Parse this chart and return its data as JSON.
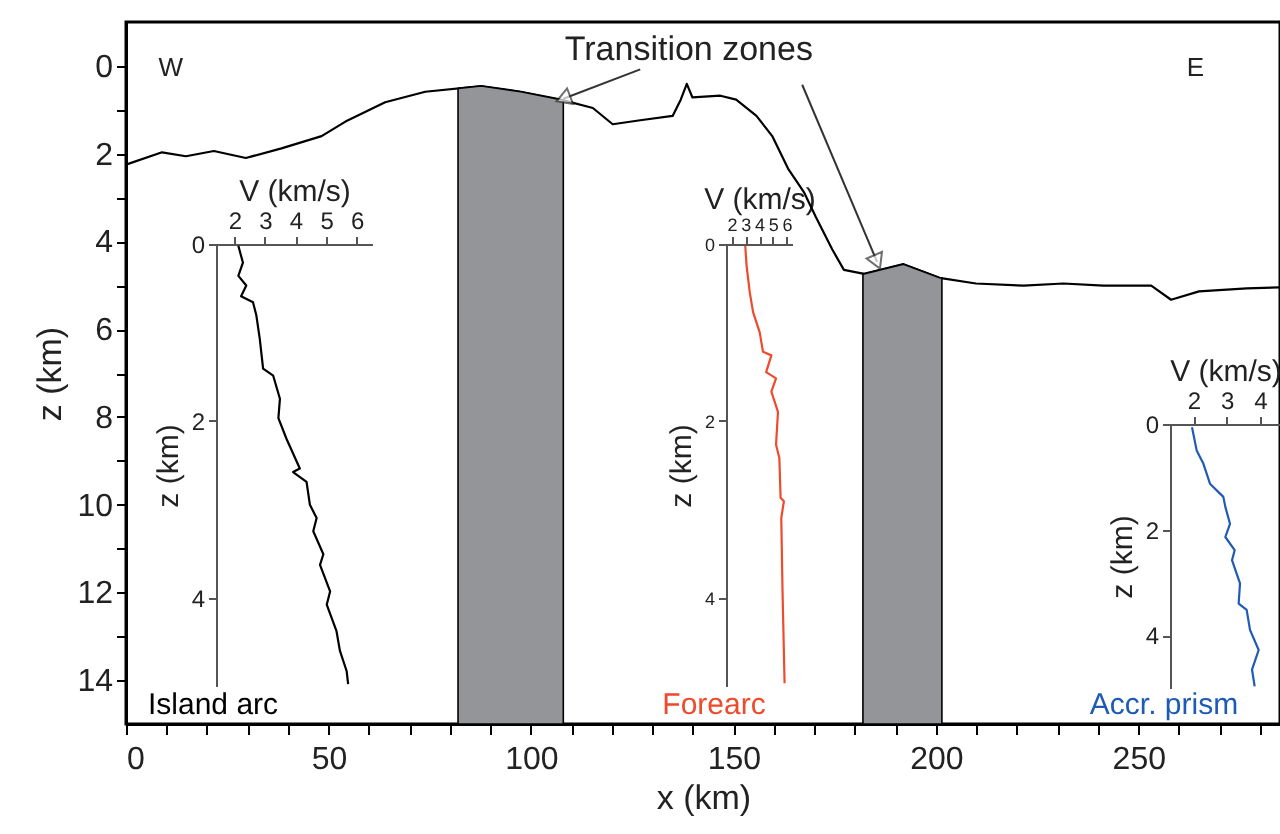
{
  "chart_data": [
    {
      "type": "line",
      "xlabel": "x (km)",
      "ylabel": "z (km)",
      "xlim": [
        0,
        285
      ],
      "ylim": [
        15,
        -1
      ],
      "xticks": [
        0,
        {
          "value": 10,
          "label": null
        },
        {
          "value": 20,
          "label": null
        },
        {
          "value": 30,
          "label": null
        },
        {
          "value": 40,
          "label": null
        },
        50,
        {
          "value": 60,
          "label": null
        },
        {
          "value": 70,
          "label": null
        },
        {
          "value": 80,
          "label": null
        },
        {
          "value": 90,
          "label": null
        },
        100,
        {
          "value": 110,
          "label": null
        },
        {
          "value": 120,
          "label": null
        },
        {
          "value": 130,
          "label": null
        },
        {
          "value": 140,
          "label": null
        },
        150,
        {
          "value": 160,
          "label": null
        },
        {
          "value": 170,
          "label": null
        },
        {
          "value": 180,
          "label": null
        },
        {
          "value": 190,
          "label": null
        },
        200,
        {
          "value": 210,
          "label": null
        },
        {
          "value": 220,
          "label": null
        },
        {
          "value": 230,
          "label": null
        },
        {
          "value": 240,
          "label": null
        },
        250,
        {
          "value": 260,
          "label": null
        },
        {
          "value": 270,
          "label": null
        },
        {
          "value": 280,
          "label": null
        }
      ],
      "yticks": [
        0,
        {
          "value": 1,
          "label": null
        },
        2,
        {
          "value": 3,
          "label": null
        },
        4,
        {
          "value": 5,
          "label": null
        },
        6,
        {
          "value": 7,
          "label": null
        },
        8,
        {
          "value": 9,
          "label": null
        },
        10,
        {
          "value": 11,
          "label": null
        },
        12,
        {
          "value": 13,
          "label": null
        },
        14
      ],
      "grid": false,
      "legend": false,
      "annotations": [
        "W",
        "E",
        {
          "text": "Transition zones",
          "x": 108,
          "y": 0.75
        }
      ],
      "bands": [
        {
          "axis": "x",
          "from": 82,
          "to": 108,
          "color": "#939598"
        },
        {
          "axis": "x",
          "from": 182,
          "to": 201.5,
          "color": "#939598"
        }
      ],
      "series": [
        {
          "color": "#000000",
          "x": [
            0,
            8.9,
            14.8,
            21.7,
            29.6,
            38.4,
            48.3,
            54.2,
            64,
            73.9,
            87.7,
            97.5,
            107.4,
            115.3,
            120.2,
            127,
            135,
            137,
            138.5,
            139.9,
            146.8,
            150.7,
            155.7,
            159.6,
            163.5,
            167.5,
            170.4,
            174.4,
            177.3,
            182.3,
            192,
            200.9,
            209.9,
            221.7,
            231.5,
            241.4,
            253.2,
            258.1,
            265,
            276.8,
            285
          ],
          "values": [
            2.25,
            1.97,
            2.06,
            1.94,
            2.1,
            1.88,
            1.6,
            1.27,
            0.83,
            0.59,
            0.46,
            0.59,
            0.77,
            0.96,
            1.33,
            1.24,
            1.14,
            0.77,
            0.41,
            0.72,
            0.68,
            0.77,
            1.14,
            1.6,
            2.34,
            2.89,
            3.45,
            4.18,
            4.65,
            4.74,
            4.52,
            4.83,
            4.96,
            5.01,
            4.96,
            5.01,
            5.01,
            5.33,
            5.14,
            5.07,
            5.05
          ]
        }
      ]
    },
    {
      "type": "line",
      "xlabel": "V (km/s)",
      "ylabel": "z (km)",
      "xlim": [
        1.4,
        6.5
      ],
      "ylim": [
        5,
        0
      ],
      "xticks": [
        2,
        3,
        4,
        5,
        6
      ],
      "yticks": [
        0,
        2,
        4
      ],
      "grid": false,
      "legend": false,
      "series": [
        {
          "name": "Island arc",
          "color": "#000000",
          "x": [
            2.13,
            2.28,
            2.13,
            2.39,
            2.22,
            2.61,
            2.72,
            2.83,
            2.94,
            3.27,
            3.49,
            3.44,
            3.7,
            4.14,
            3.92,
            4.36,
            4.47,
            4.69,
            4.58,
            4.91,
            4.8,
            5.13,
            5.02,
            5.34,
            5.45,
            5.67,
            5.72
          ],
          "values": [
            0.02,
            0.21,
            0.36,
            0.47,
            0.59,
            0.66,
            0.81,
            1.07,
            1.41,
            1.49,
            1.75,
            1.97,
            2.2,
            2.54,
            2.58,
            2.69,
            2.95,
            3.1,
            3.25,
            3.51,
            3.63,
            3.93,
            4.08,
            4.38,
            4.6,
            4.83,
            4.98
          ]
        }
      ]
    },
    {
      "type": "line",
      "xlabel": "V (km/s)",
      "ylabel": "z (km)",
      "xlim": [
        1.6,
        6.4
      ],
      "ylim": [
        5,
        0
      ],
      "xticks": [
        2,
        3,
        4,
        5,
        6
      ],
      "yticks": [
        0,
        2,
        4
      ],
      "grid": false,
      "legend": false,
      "series": [
        {
          "name": "Forearc",
          "color": "#ee4a2c",
          "x": [
            3.0,
            3.1,
            3.33,
            3.57,
            4.05,
            4.29,
            4.9,
            4.52,
            5.24,
            4.9,
            5.38,
            5.24,
            5.48,
            5.57,
            5.81,
            5.62,
            5.71,
            5.86
          ],
          "values": [
            0.02,
            0.25,
            0.55,
            0.77,
            1.0,
            1.22,
            1.26,
            1.45,
            1.52,
            1.67,
            1.9,
            2.27,
            2.42,
            2.87,
            2.91,
            3.1,
            3.92,
            4.97
          ]
        }
      ]
    },
    {
      "type": "line",
      "xlabel": "V (km/s)",
      "ylabel": "z (km)",
      "xlim": [
        1.3,
        4.6
      ],
      "ylim": [
        5,
        0
      ],
      "xticks": [
        2,
        3,
        4
      ],
      "yticks": [
        0,
        2,
        4
      ],
      "grid": false,
      "legend": false,
      "series": [
        {
          "name": "Accr. prism",
          "color": "#1f5bb5",
          "x": [
            1.96,
            2.1,
            2.3,
            2.5,
            2.9,
            2.96,
            3.1,
            2.96,
            3.24,
            3.16,
            3.4,
            3.36,
            3.6,
            3.7,
            3.96,
            3.76,
            3.84
          ],
          "values": [
            0.06,
            0.5,
            0.75,
            1.13,
            1.38,
            1.57,
            1.89,
            2.14,
            2.39,
            2.58,
            3.02,
            3.4,
            3.52,
            3.9,
            4.28,
            4.65,
            4.97
          ]
        }
      ]
    }
  ]
}
